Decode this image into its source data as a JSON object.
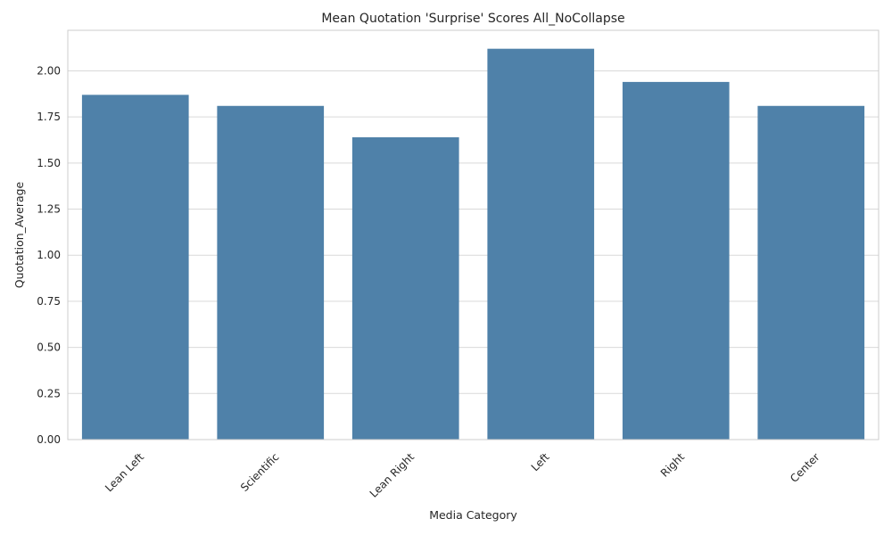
{
  "chart_data": {
    "type": "bar",
    "title": "Mean Quotation 'Surprise' Scores All_NoCollapse",
    "xlabel": "Media Category",
    "ylabel": "Quotation_Average",
    "categories": [
      "Lean Left",
      "Scientific",
      "Lean Right",
      "Left",
      "Right",
      "Center"
    ],
    "values": [
      1.87,
      1.81,
      1.64,
      2.12,
      1.94,
      1.81
    ],
    "ylim": [
      0,
      2.22
    ],
    "yticks": [
      0.0,
      0.25,
      0.5,
      0.75,
      1.0,
      1.25,
      1.5,
      1.75,
      2.0
    ],
    "ytick_labels": [
      "0.00",
      "0.25",
      "0.50",
      "0.75",
      "1.00",
      "1.25",
      "1.50",
      "1.75",
      "2.00"
    ],
    "bar_color": "#4f81a9",
    "grid": true,
    "legend": "none"
  }
}
